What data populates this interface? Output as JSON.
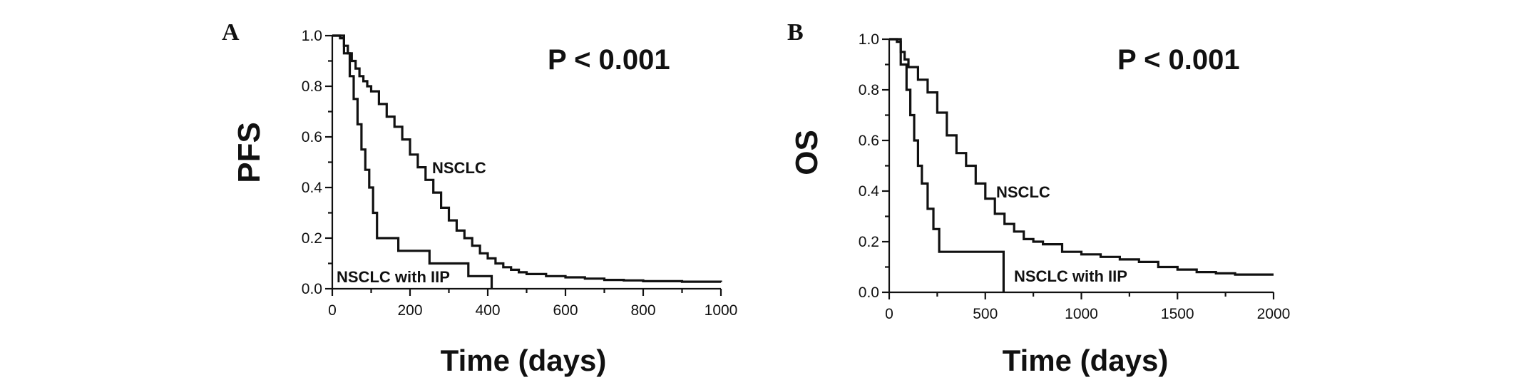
{
  "chart_data": [
    {
      "type": "line",
      "panel": "A",
      "title": "P < 0.001",
      "xlabel": "Time (days)",
      "ylabel": "PFS",
      "xlim": [
        0,
        1000
      ],
      "ylim": [
        0,
        1.0
      ],
      "xticks": [
        "0",
        "200",
        "400",
        "600",
        "800",
        "1000"
      ],
      "yticks": [
        "0.0",
        "0.2",
        "0.4",
        "0.6",
        "0.8",
        "1.0"
      ],
      "grid": false,
      "step": true,
      "series": [
        {
          "name": "NSCLC",
          "x": [
            0,
            20,
            30,
            40,
            50,
            60,
            70,
            80,
            90,
            100,
            120,
            140,
            160,
            180,
            200,
            220,
            240,
            260,
            280,
            300,
            320,
            340,
            360,
            380,
            400,
            420,
            440,
            460,
            480,
            500,
            550,
            600,
            650,
            700,
            750,
            800,
            900,
            1000
          ],
          "y": [
            1.0,
            0.99,
            0.96,
            0.93,
            0.9,
            0.87,
            0.84,
            0.82,
            0.8,
            0.78,
            0.73,
            0.68,
            0.64,
            0.59,
            0.53,
            0.48,
            0.43,
            0.38,
            0.32,
            0.27,
            0.23,
            0.2,
            0.17,
            0.14,
            0.12,
            0.1,
            0.085,
            0.075,
            0.065,
            0.058,
            0.05,
            0.045,
            0.04,
            0.035,
            0.033,
            0.03,
            0.028,
            0.026
          ]
        },
        {
          "name": "NSCLC with IIP",
          "x": [
            0,
            30,
            45,
            55,
            65,
            75,
            85,
            95,
            105,
            115,
            130,
            170,
            250,
            350,
            400,
            410
          ],
          "y": [
            1.0,
            0.93,
            0.84,
            0.75,
            0.65,
            0.55,
            0.47,
            0.4,
            0.3,
            0.2,
            0.2,
            0.15,
            0.1,
            0.05,
            0.05,
            0.0
          ]
        }
      ]
    },
    {
      "type": "line",
      "panel": "B",
      "title": "P < 0.001",
      "xlabel": "Time (days)",
      "ylabel": "OS",
      "xlim": [
        0,
        2000
      ],
      "ylim": [
        0,
        1.0
      ],
      "xticks": [
        "0",
        "500",
        "1000",
        "1500",
        "2000"
      ],
      "yticks": [
        "0.0",
        "0.2",
        "0.4",
        "0.6",
        "0.8",
        "1.0"
      ],
      "grid": false,
      "step": true,
      "series": [
        {
          "name": "NSCLC",
          "x": [
            0,
            40,
            60,
            80,
            100,
            150,
            200,
            250,
            300,
            350,
            400,
            450,
            500,
            550,
            600,
            650,
            700,
            750,
            800,
            900,
            1000,
            1100,
            1200,
            1300,
            1400,
            1500,
            1600,
            1700,
            1800,
            2000
          ],
          "y": [
            1.0,
            0.99,
            0.95,
            0.92,
            0.89,
            0.84,
            0.79,
            0.71,
            0.62,
            0.55,
            0.5,
            0.43,
            0.37,
            0.31,
            0.27,
            0.24,
            0.21,
            0.2,
            0.19,
            0.16,
            0.15,
            0.14,
            0.13,
            0.12,
            0.1,
            0.09,
            0.08,
            0.075,
            0.07,
            0.07
          ]
        },
        {
          "name": "NSCLC with IIP",
          "x": [
            0,
            60,
            90,
            110,
            130,
            150,
            170,
            200,
            230,
            260,
            590,
            595
          ],
          "y": [
            1.0,
            0.9,
            0.8,
            0.7,
            0.6,
            0.5,
            0.43,
            0.33,
            0.25,
            0.16,
            0.16,
            0.0
          ]
        }
      ]
    }
  ]
}
